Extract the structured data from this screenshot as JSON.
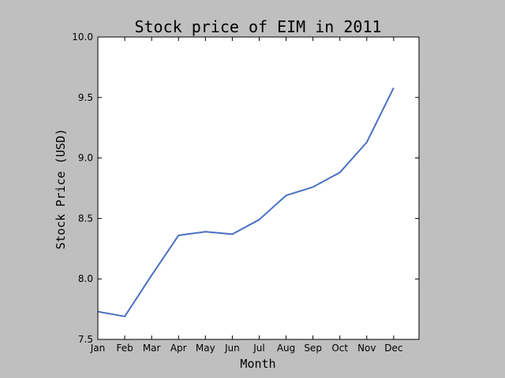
{
  "chart_data": {
    "type": "line",
    "title": "Stock price of EIM in 2011",
    "xlabel": "Month",
    "ylabel": "Stock Price (USD)",
    "categories": [
      "Jan",
      "Feb",
      "Mar",
      "Apr",
      "May",
      "Jun",
      "Jul",
      "Aug",
      "Sep",
      "Oct",
      "Nov",
      "Dec"
    ],
    "series": [
      {
        "values": [
          7.73,
          7.69,
          8.03,
          8.36,
          8.39,
          8.37,
          8.49,
          8.69,
          8.76,
          8.88,
          9.13,
          9.58
        ]
      }
    ],
    "ylim": [
      7.5,
      10.0
    ],
    "yticks": [
      "7.5",
      "8.0",
      "8.5",
      "9.0",
      "9.5",
      "10.0"
    ],
    "grid": false,
    "colors": {
      "line": "#4a6fc4",
      "background": "#bfbfbf",
      "plot_area": "#ffffff"
    }
  }
}
